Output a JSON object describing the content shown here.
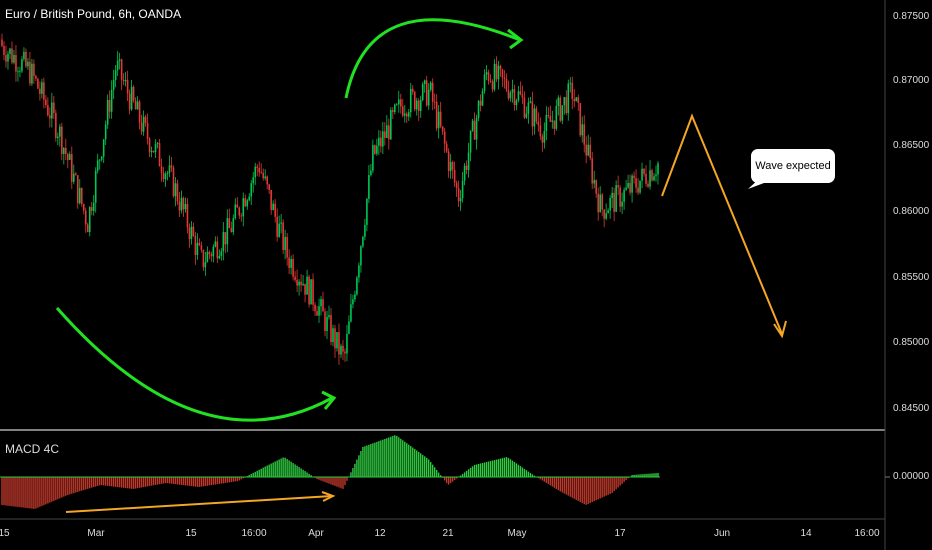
{
  "header": {
    "title": "Euro / British Pound, 6h, OANDA"
  },
  "indicator": {
    "label": "MACD 4C"
  },
  "annotation": {
    "callout": "Wave expected"
  },
  "price_axis": {
    "ticks": [
      "0.87500",
      "0.87000",
      "0.86500",
      "0.86000",
      "0.85500",
      "0.85000",
      "0.84500"
    ],
    "macd_tick": "0.00000"
  },
  "time_axis": {
    "ticks": [
      "15",
      "Mar",
      "15",
      "16:00",
      "Apr",
      "12",
      "21",
      "May",
      "17",
      "Jun",
      "14",
      "16:00"
    ]
  },
  "colors": {
    "bull": "#00c853",
    "bear": "#e53935",
    "arrow_green": "#22e022",
    "arrow_orange": "#f5a623",
    "macd_up": "#2ecc40",
    "macd_down": "#c0392b"
  },
  "chart_data": {
    "type": "candlestick",
    "price_range": [
      0.843,
      0.8775
    ],
    "waypoints": [
      [
        0.8725,
        0.8745
      ],
      [
        0.8705,
        0.87
      ],
      [
        0.866,
        0.864
      ],
      [
        0.859,
        0.8555
      ],
      [
        0.871,
        0.8695
      ],
      [
        0.866,
        0.8655
      ],
      [
        0.862,
        0.858
      ],
      [
        0.856,
        0.857
      ],
      [
        0.8585,
        0.8545
      ],
      [
        0.8635,
        0.864
      ],
      [
        0.8565,
        0.8535
      ],
      [
        0.853,
        0.8495
      ],
      [
        0.8485,
        0.848
      ],
      [
        0.864,
        0.87
      ],
      [
        0.868,
        0.8685
      ],
      [
        0.869,
        0.864
      ],
      [
        0.861,
        0.864
      ],
      [
        0.8705,
        0.87
      ],
      [
        0.869,
        0.87
      ],
      [
        0.866,
        0.863
      ],
      [
        0.869,
        0.868
      ],
      [
        0.86,
        0.858
      ],
      [
        0.8615,
        0.859
      ],
      [
        0.8635,
        0.8605
      ]
    ],
    "projection": [
      [
        "2021-05-22",
        0.8605
      ],
      [
        "2021-05-28",
        0.8675
      ],
      [
        "2021-06-08",
        0.8505
      ]
    ],
    "macd_range": [
      -0.0025,
      0.0025
    ]
  }
}
